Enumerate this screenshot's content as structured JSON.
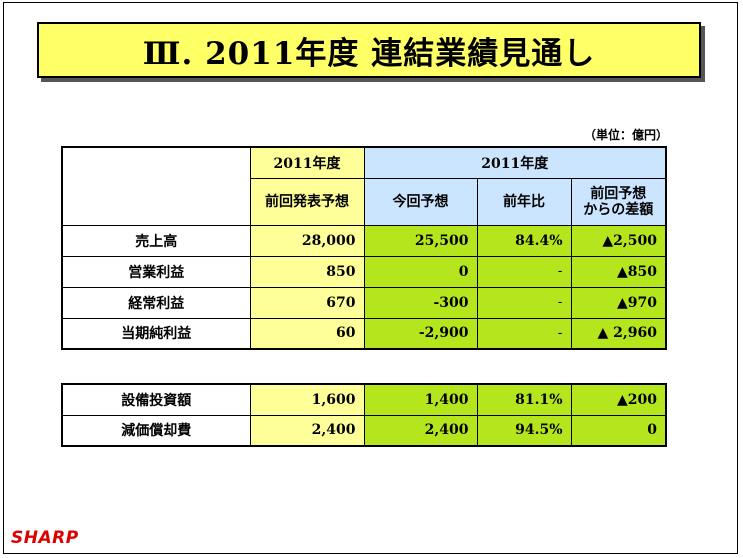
{
  "title": "Ⅲ. 2011年度 連結業績見通し",
  "unit_note": "（単位：億円）",
  "table1": {
    "header_top_left": "2011年度",
    "header_top_right": "2011年度",
    "col_prev_forecast": "前回発表予想",
    "col_current_forecast": "今回予想",
    "col_yoy": "前年比",
    "col_diff_line1": "前回予想",
    "col_diff_line2": "からの差額",
    "rows": [
      {
        "label": "売上高",
        "prev": "28,000",
        "current": "25,500",
        "yoy": "84.4%",
        "diff": "▲2,500"
      },
      {
        "label": "営業利益",
        "prev": "850",
        "current": "0",
        "yoy": "-",
        "diff": "▲850"
      },
      {
        "label": "経常利益",
        "prev": "670",
        "current": "-300",
        "yoy": "-",
        "diff": "▲970"
      },
      {
        "label": "当期純利益",
        "prev": "60",
        "current": "-2,900",
        "yoy": "-",
        "diff": "▲ 2,960"
      }
    ]
  },
  "table2": {
    "rows": [
      {
        "label": "設備投資額",
        "prev": "1,600",
        "current": "1,400",
        "yoy": "81.1%",
        "diff": "▲200"
      },
      {
        "label": "減価償却費",
        "prev": "2,400",
        "current": "2,400",
        "yoy": "94.5%",
        "diff": "0"
      }
    ]
  },
  "logo_text": "SHARP",
  "colors": {
    "title_bg": "#ffff66",
    "prev_bg": "#ffff99",
    "current_bg": "#b5e61d",
    "header_blue": "#cce5ff",
    "logo": "#e00000"
  }
}
